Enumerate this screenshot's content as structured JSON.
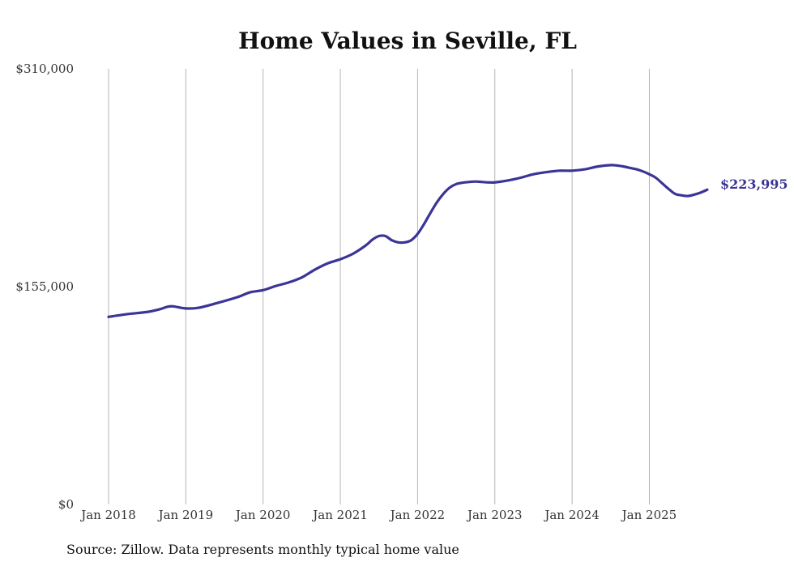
{
  "chart_data": {
    "type": "line",
    "title": "Home Values in Seville, FL",
    "source": "Source: Zillow. Data represents monthly typical home value",
    "end_label": "$223,995",
    "line_color": "#3a3596",
    "ylim": [
      0,
      310000
    ],
    "y_ticks": [
      {
        "value": 0,
        "label": "$0"
      },
      {
        "value": 155000,
        "label": "$155,000"
      },
      {
        "value": 310000,
        "label": "$310,000"
      }
    ],
    "x_ticks": [
      {
        "value": "2018-01",
        "label": "Jan 2018"
      },
      {
        "value": "2019-01",
        "label": "Jan 2019"
      },
      {
        "value": "2020-01",
        "label": "Jan 2020"
      },
      {
        "value": "2021-01",
        "label": "Jan 2021"
      },
      {
        "value": "2022-01",
        "label": "Jan 2022"
      },
      {
        "value": "2023-01",
        "label": "Jan 2023"
      },
      {
        "value": "2024-01",
        "label": "Jan 2024"
      },
      {
        "value": "2025-01",
        "label": "Jan 2025"
      }
    ],
    "grid": "vertical",
    "series": [
      {
        "x": [
          "2018-01",
          "2018-04",
          "2018-07",
          "2018-09",
          "2018-10",
          "2018-11",
          "2019-01",
          "2019-03",
          "2019-06",
          "2019-09",
          "2019-11",
          "2020-01",
          "2020-03",
          "2020-05",
          "2020-07",
          "2020-09",
          "2020-11",
          "2021-01",
          "2021-03",
          "2021-05",
          "2021-06",
          "2021-07",
          "2021-08",
          "2021-09",
          "2021-10",
          "2021-11",
          "2021-12",
          "2022-01",
          "2022-02",
          "2022-03",
          "2022-04",
          "2022-05",
          "2022-06",
          "2022-07",
          "2022-08",
          "2022-09",
          "2022-10",
          "2022-11",
          "2022-12",
          "2023-01",
          "2023-03",
          "2023-05",
          "2023-07",
          "2023-09",
          "2023-11",
          "2024-01",
          "2024-03",
          "2024-05",
          "2024-07",
          "2024-08",
          "2024-09",
          "2024-10",
          "2024-11",
          "2024-12",
          "2025-01",
          "2025-02",
          "2025-03",
          "2025-04",
          "2025-05",
          "2025-06",
          "2025-07",
          "2025-08",
          "2025-09",
          "2025-10"
        ],
        "values": [
          133500,
          135500,
          137000,
          139000,
          140500,
          141000,
          139500,
          140000,
          143500,
          147500,
          151000,
          152500,
          155500,
          158000,
          161500,
          167000,
          171500,
          174500,
          178500,
          184500,
          188500,
          191000,
          191000,
          188000,
          186500,
          186500,
          188000,
          192500,
          199500,
          207500,
          215000,
          221000,
          225500,
          228000,
          229000,
          229500,
          229800,
          229500,
          229200,
          229200,
          230500,
          232500,
          235000,
          236500,
          237500,
          237500,
          238500,
          240500,
          241500,
          241200,
          240500,
          239500,
          238500,
          237000,
          235000,
          232500,
          228500,
          224500,
          221000,
          220000,
          219500,
          220500,
          222000,
          223995
        ]
      }
    ]
  }
}
